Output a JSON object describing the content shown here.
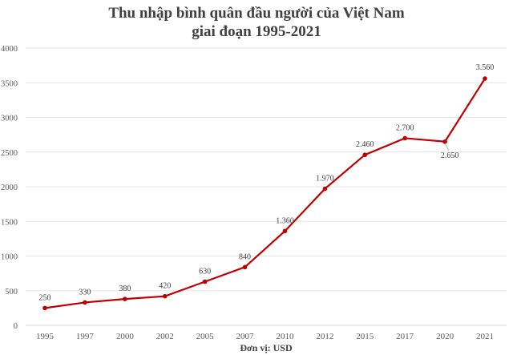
{
  "chart_data": {
    "type": "line",
    "title": "Thu nhập bình quân đầu người của Việt Nam",
    "subtitle": "giai đoạn 1995-2021",
    "xlabel": "Đơn vị: USD",
    "ylabel": "",
    "categories": [
      "1995",
      "1997",
      "2000",
      "2002",
      "2005",
      "2007",
      "2010",
      "2012",
      "2015",
      "2017",
      "2020",
      "2021"
    ],
    "series": [
      {
        "values": [
          250,
          330,
          380,
          420,
          630,
          840,
          1360,
          1970,
          2460,
          2700,
          2650,
          3560
        ],
        "color": "#C00000"
      }
    ],
    "data_labels": [
      "250",
      "330",
      "380",
      "420",
      "630",
      "840",
      "1.360",
      "1.970",
      "2.460",
      "2.700",
      "2.650",
      "3.560"
    ],
    "yticks": [
      0,
      500,
      1000,
      1500,
      2000,
      2500,
      3000,
      3500,
      4000
    ],
    "ylim": [
      0,
      4000
    ],
    "grid": true,
    "legend": "none"
  }
}
